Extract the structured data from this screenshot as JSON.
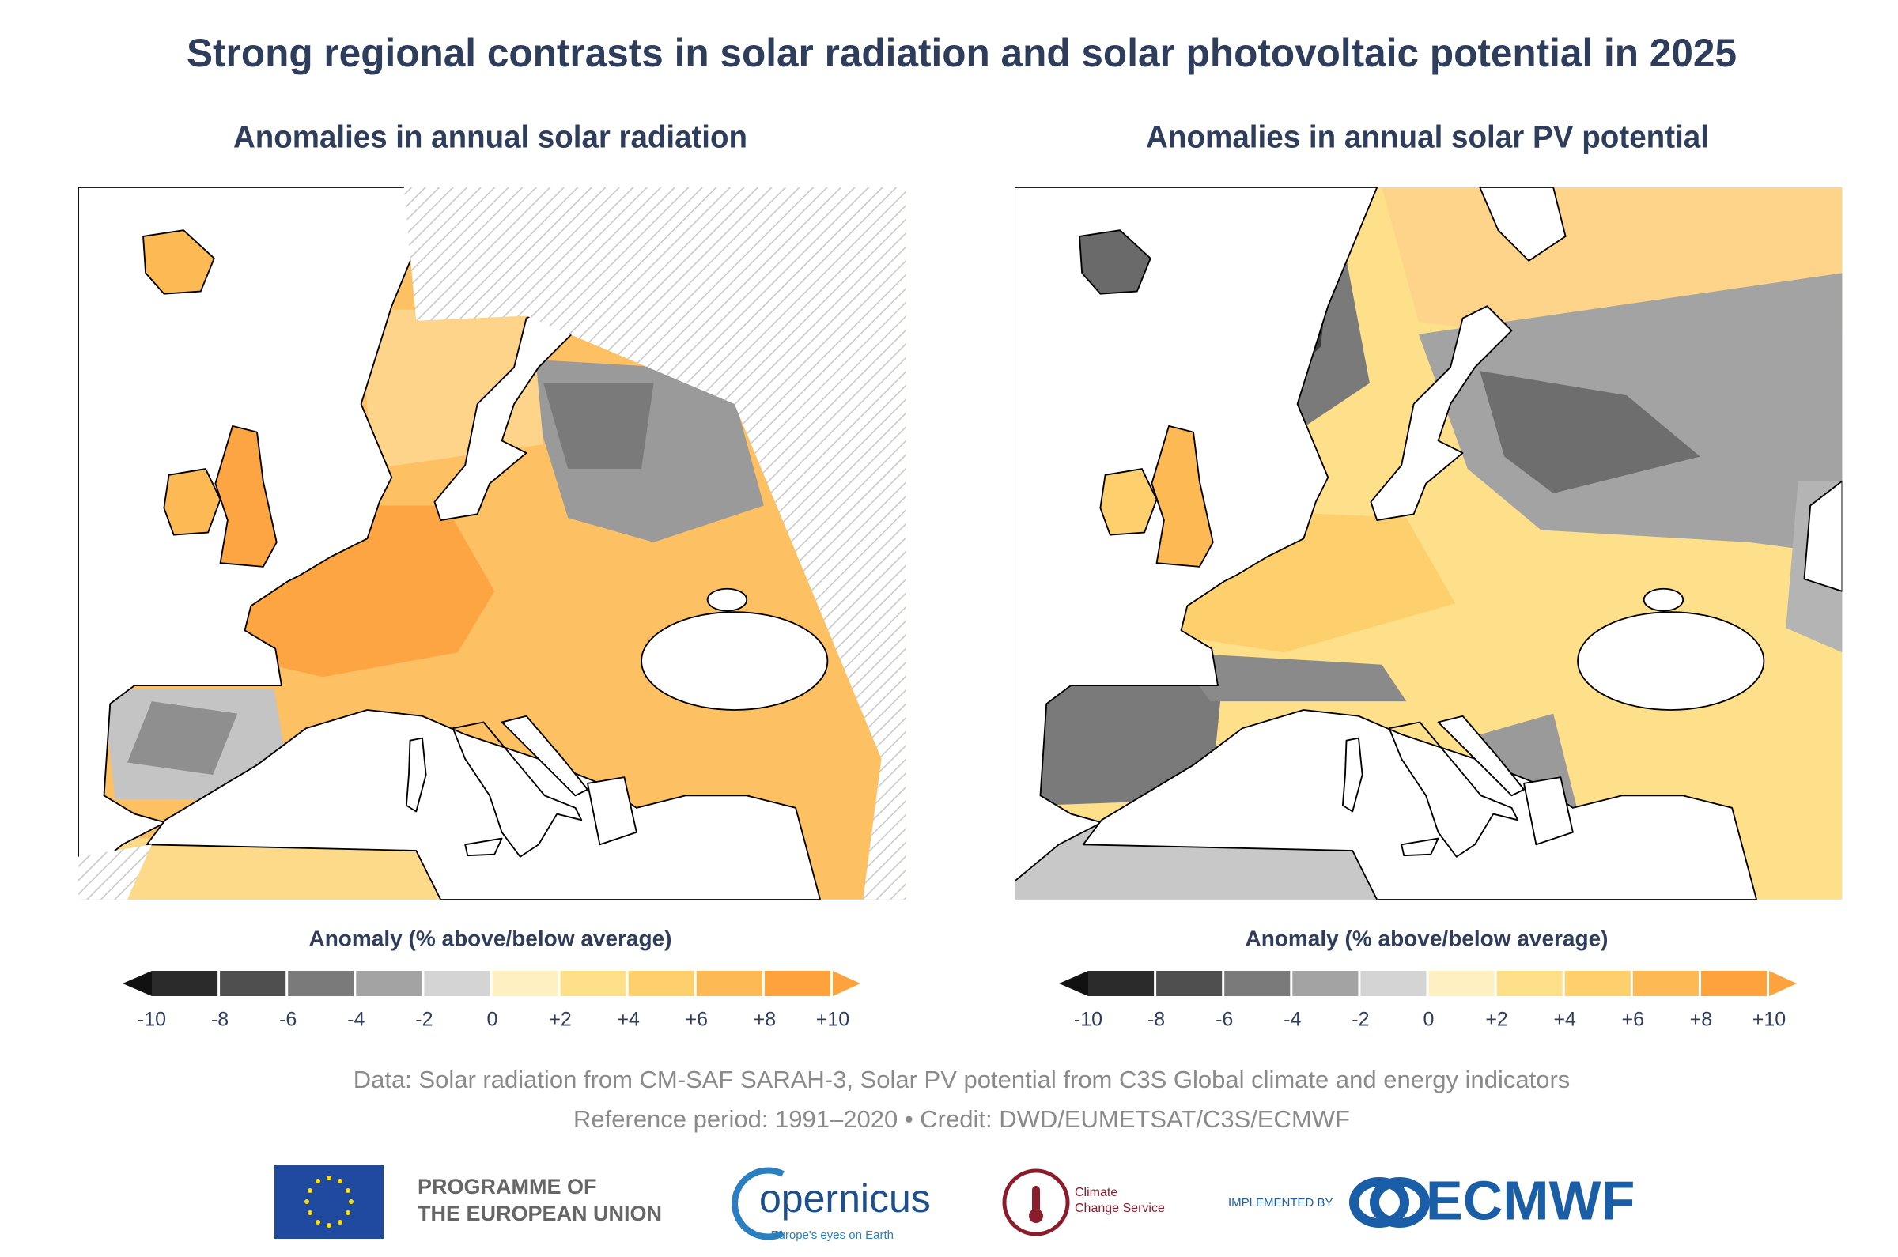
{
  "header": {
    "title": "Strong regional contrasts in solar radiation and solar photovoltaic potential in 2025"
  },
  "panels": [
    {
      "subtitle": "Anomalies in annual solar radiation",
      "colorbar": {
        "label": "Anomaly (% above/below average)",
        "ticks": [
          "-10",
          "-8",
          "-6",
          "-4",
          "-2",
          "0",
          "+2",
          "+4",
          "+6",
          "+8",
          "+10"
        ],
        "colors": [
          "#2b2b2b",
          "#4f4f4f",
          "#7a7a7a",
          "#a3a3a3",
          "#d4d4d4",
          "#fff0c2",
          "#fee08b",
          "#fdcf6d",
          "#fdb954",
          "#fda23c"
        ],
        "under_color": "#111111",
        "over_color": "#fda23c"
      }
    },
    {
      "subtitle": "Anomalies in annual solar PV potential",
      "colorbar": {
        "label": "Anomaly (% above/below average)",
        "ticks": [
          "-10",
          "-8",
          "-6",
          "-4",
          "-2",
          "0",
          "+2",
          "+4",
          "+6",
          "+8",
          "+10"
        ],
        "colors": [
          "#2b2b2b",
          "#4f4f4f",
          "#7a7a7a",
          "#a3a3a3",
          "#d4d4d4",
          "#fff0c2",
          "#fee08b",
          "#fdcf6d",
          "#fdb954",
          "#fda23c"
        ],
        "under_color": "#111111",
        "over_color": "#fda23c"
      }
    }
  ],
  "footer": {
    "data_note": "Data: Solar radiation from CM-SAF SARAH-3, Solar PV potential from C3S Global climate and energy indicators",
    "credit": "Reference period: 1991–2020 • Credit: DWD/EUMETSAT/C3S/ECMWF"
  },
  "logos": {
    "eu_line1": "PROGRAMME OF",
    "eu_line2": "THE EUROPEAN UNION",
    "copernicus": "opernicus",
    "copernicus_tagline": "Europe's eyes on Earth",
    "c3s_line1": "Climate",
    "c3s_line2": "Change Service",
    "implemented_by": "IMPLEMENTED BY",
    "ecmwf": "ECMWF"
  }
}
